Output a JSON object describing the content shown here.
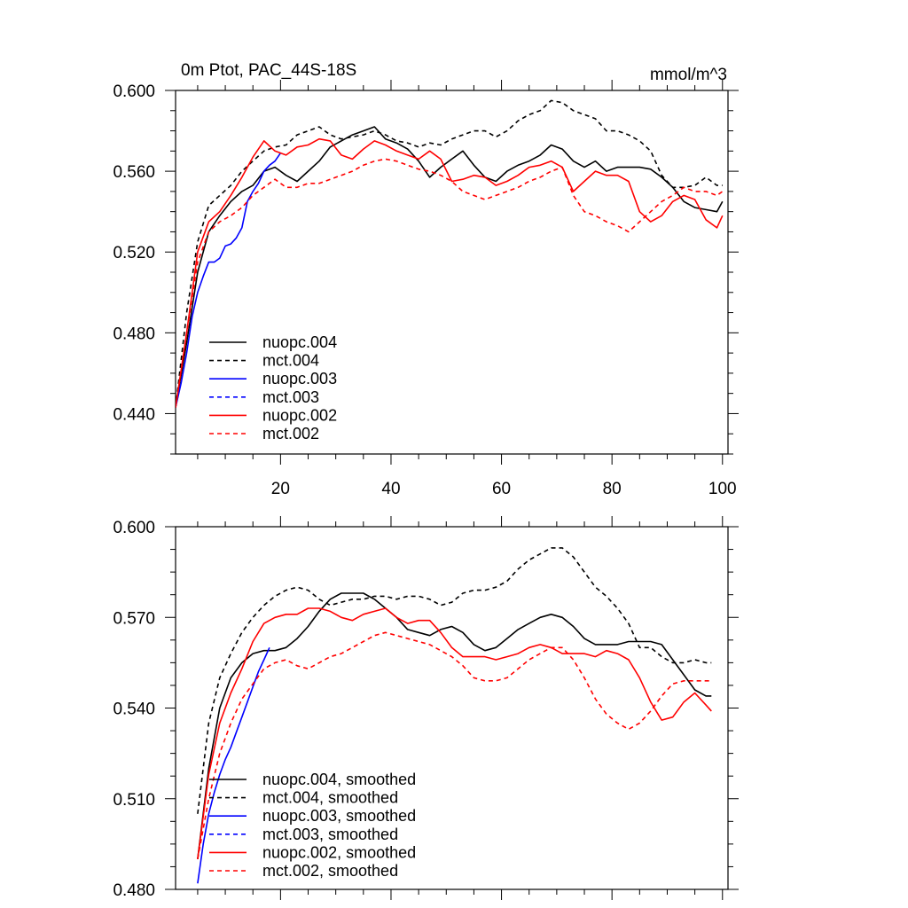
{
  "chart_data": [
    {
      "type": "line",
      "title": "0m Ptot, PAC_44S-18S",
      "units": "mmol/m^3",
      "xlim": [
        1,
        101
      ],
      "ylim": [
        0.42,
        0.6
      ],
      "xticks": [
        20,
        40,
        60,
        80,
        100
      ],
      "xtick_labels": [
        "20",
        "40",
        "60",
        "80",
        "100"
      ],
      "yticks": [
        0.44,
        0.48,
        0.52,
        0.56,
        0.6
      ],
      "ytick_labels": [
        "0.440",
        "0.480",
        "0.520",
        "0.560",
        "0.600"
      ],
      "legend_position": "lower-left",
      "series": [
        {
          "name": "nuopc.004",
          "color": "#000000",
          "dash": "solid",
          "x": [
            1,
            3,
            5,
            7,
            9,
            11,
            13,
            15,
            17,
            19,
            21,
            23,
            25,
            27,
            29,
            31,
            33,
            35,
            37,
            39,
            41,
            43,
            45,
            47,
            49,
            51,
            53,
            55,
            57,
            59,
            61,
            63,
            65,
            67,
            69,
            71,
            73,
            75,
            77,
            79,
            81,
            83,
            85,
            87,
            89,
            91,
            93,
            95,
            97,
            99,
            100
          ],
          "values": [
            0.443,
            0.475,
            0.51,
            0.53,
            0.538,
            0.545,
            0.55,
            0.553,
            0.56,
            0.562,
            0.558,
            0.555,
            0.56,
            0.565,
            0.572,
            0.575,
            0.578,
            0.58,
            0.582,
            0.576,
            0.574,
            0.571,
            0.565,
            0.557,
            0.562,
            0.566,
            0.57,
            0.563,
            0.557,
            0.555,
            0.56,
            0.563,
            0.565,
            0.568,
            0.573,
            0.571,
            0.565,
            0.562,
            0.565,
            0.56,
            0.562,
            0.562,
            0.562,
            0.561,
            0.557,
            0.552,
            0.545,
            0.542,
            0.541,
            0.54,
            0.545
          ]
        },
        {
          "name": "mct.004",
          "color": "#000000",
          "dash": "dashed",
          "x": [
            1,
            3,
            5,
            7,
            9,
            11,
            13,
            15,
            17,
            19,
            21,
            23,
            25,
            27,
            29,
            31,
            33,
            35,
            37,
            39,
            41,
            43,
            45,
            47,
            49,
            51,
            53,
            55,
            57,
            59,
            61,
            63,
            65,
            67,
            69,
            71,
            73,
            75,
            77,
            79,
            81,
            83,
            85,
            87,
            89,
            91,
            93,
            95,
            97,
            99,
            100
          ],
          "values": [
            0.443,
            0.49,
            0.525,
            0.543,
            0.548,
            0.553,
            0.56,
            0.565,
            0.57,
            0.572,
            0.573,
            0.578,
            0.58,
            0.582,
            0.578,
            0.576,
            0.577,
            0.578,
            0.58,
            0.578,
            0.575,
            0.574,
            0.572,
            0.574,
            0.573,
            0.576,
            0.578,
            0.58,
            0.58,
            0.577,
            0.58,
            0.585,
            0.588,
            0.59,
            0.595,
            0.594,
            0.59,
            0.588,
            0.586,
            0.58,
            0.58,
            0.578,
            0.575,
            0.57,
            0.558,
            0.552,
            0.552,
            0.553,
            0.557,
            0.553,
            0.553
          ]
        },
        {
          "name": "nuopc.003",
          "color": "#0000ff",
          "dash": "solid",
          "x": [
            1,
            2,
            3,
            4,
            5,
            6,
            7,
            8,
            9,
            10,
            11,
            12,
            13,
            14,
            15,
            16,
            17,
            18,
            19,
            20
          ],
          "values": [
            0.443,
            0.455,
            0.47,
            0.488,
            0.5,
            0.508,
            0.515,
            0.515,
            0.517,
            0.523,
            0.524,
            0.527,
            0.532,
            0.545,
            0.55,
            0.554,
            0.56,
            0.563,
            0.565,
            0.569
          ]
        },
        {
          "name": "mct.003",
          "color": "#0000ff",
          "dash": "dashed",
          "x": [],
          "values": []
        },
        {
          "name": "nuopc.002",
          "color": "#ff0000",
          "dash": "solid",
          "x": [
            1,
            3,
            5,
            7,
            9,
            11,
            13,
            15,
            17,
            19,
            21,
            23,
            25,
            27,
            29,
            31,
            33,
            35,
            37,
            39,
            41,
            43,
            45,
            47,
            49,
            51,
            53,
            55,
            57,
            59,
            61,
            63,
            65,
            67,
            69,
            71,
            73,
            75,
            77,
            79,
            81,
            83,
            85,
            87,
            89,
            91,
            93,
            95,
            97,
            99,
            100
          ],
          "values": [
            0.443,
            0.48,
            0.52,
            0.535,
            0.54,
            0.548,
            0.557,
            0.567,
            0.575,
            0.57,
            0.568,
            0.572,
            0.573,
            0.576,
            0.575,
            0.568,
            0.566,
            0.571,
            0.575,
            0.573,
            0.57,
            0.568,
            0.566,
            0.57,
            0.566,
            0.555,
            0.556,
            0.558,
            0.557,
            0.553,
            0.555,
            0.558,
            0.562,
            0.563,
            0.565,
            0.562,
            0.55,
            0.555,
            0.56,
            0.558,
            0.558,
            0.555,
            0.54,
            0.535,
            0.538,
            0.545,
            0.548,
            0.546,
            0.536,
            0.532,
            0.538
          ]
        },
        {
          "name": "mct.002",
          "color": "#ff0000",
          "dash": "dashed",
          "x": [
            1,
            3,
            5,
            7,
            9,
            11,
            13,
            15,
            17,
            19,
            21,
            23,
            25,
            27,
            29,
            31,
            33,
            35,
            37,
            39,
            41,
            43,
            45,
            47,
            49,
            51,
            53,
            55,
            57,
            59,
            61,
            63,
            65,
            67,
            69,
            71,
            73,
            75,
            77,
            79,
            81,
            83,
            85,
            87,
            89,
            91,
            93,
            95,
            97,
            99,
            100
          ],
          "values": [
            0.443,
            0.48,
            0.515,
            0.53,
            0.535,
            0.538,
            0.542,
            0.548,
            0.552,
            0.556,
            0.552,
            0.552,
            0.554,
            0.554,
            0.556,
            0.558,
            0.56,
            0.563,
            0.565,
            0.566,
            0.565,
            0.563,
            0.561,
            0.56,
            0.558,
            0.555,
            0.55,
            0.548,
            0.546,
            0.548,
            0.55,
            0.552,
            0.555,
            0.557,
            0.56,
            0.562,
            0.548,
            0.54,
            0.538,
            0.535,
            0.533,
            0.53,
            0.535,
            0.54,
            0.545,
            0.548,
            0.552,
            0.55,
            0.55,
            0.548,
            0.55
          ]
        }
      ]
    },
    {
      "type": "line",
      "xlim": [
        1,
        101
      ],
      "ylim": [
        0.48,
        0.6
      ],
      "xticks": [
        20,
        40,
        60,
        80,
        100
      ],
      "yticks": [
        0.48,
        0.51,
        0.54,
        0.57,
        0.6
      ],
      "ytick_labels": [
        "0.480",
        "0.510",
        "0.540",
        "0.570",
        "0.600"
      ],
      "legend_position": "lower-left",
      "series": [
        {
          "name": "nuopc.004, smoothed",
          "color": "#000000",
          "dash": "solid",
          "x": [
            5,
            7,
            9,
            11,
            13,
            15,
            17,
            19,
            21,
            23,
            25,
            27,
            29,
            31,
            33,
            35,
            37,
            39,
            41,
            43,
            45,
            47,
            49,
            51,
            53,
            55,
            57,
            59,
            61,
            63,
            65,
            67,
            69,
            71,
            73,
            75,
            77,
            79,
            81,
            83,
            85,
            87,
            89,
            91,
            93,
            95,
            97,
            98
          ],
          "values": [
            0.49,
            0.52,
            0.54,
            0.55,
            0.555,
            0.558,
            0.559,
            0.559,
            0.56,
            0.563,
            0.567,
            0.572,
            0.576,
            0.578,
            0.578,
            0.578,
            0.576,
            0.573,
            0.57,
            0.566,
            0.565,
            0.564,
            0.566,
            0.567,
            0.565,
            0.561,
            0.559,
            0.56,
            0.563,
            0.566,
            0.568,
            0.57,
            0.571,
            0.57,
            0.567,
            0.563,
            0.561,
            0.561,
            0.561,
            0.562,
            0.562,
            0.562,
            0.561,
            0.556,
            0.551,
            0.546,
            0.544,
            0.544
          ]
        },
        {
          "name": "mct.004, smoothed",
          "color": "#000000",
          "dash": "dashed",
          "x": [
            5,
            7,
            9,
            11,
            13,
            15,
            17,
            19,
            21,
            23,
            25,
            27,
            29,
            31,
            33,
            35,
            37,
            39,
            41,
            43,
            45,
            47,
            49,
            51,
            53,
            55,
            57,
            59,
            61,
            63,
            65,
            67,
            69,
            71,
            73,
            75,
            77,
            79,
            81,
            83,
            85,
            87,
            89,
            91,
            93,
            95,
            97,
            98
          ],
          "values": [
            0.505,
            0.535,
            0.55,
            0.558,
            0.565,
            0.57,
            0.574,
            0.577,
            0.579,
            0.58,
            0.579,
            0.576,
            0.574,
            0.575,
            0.576,
            0.576,
            0.577,
            0.577,
            0.576,
            0.577,
            0.577,
            0.576,
            0.574,
            0.575,
            0.578,
            0.579,
            0.579,
            0.58,
            0.582,
            0.586,
            0.589,
            0.591,
            0.593,
            0.593,
            0.59,
            0.585,
            0.58,
            0.577,
            0.573,
            0.568,
            0.56,
            0.56,
            0.557,
            0.555,
            0.555,
            0.556,
            0.555,
            0.555
          ]
        },
        {
          "name": "nuopc.003, smoothed",
          "color": "#0000ff",
          "dash": "solid",
          "x": [
            5,
            6,
            7,
            8,
            9,
            10,
            11,
            12,
            13,
            14,
            15,
            16,
            17,
            18
          ],
          "values": [
            0.482,
            0.495,
            0.505,
            0.512,
            0.518,
            0.523,
            0.527,
            0.532,
            0.537,
            0.542,
            0.547,
            0.552,
            0.556,
            0.56
          ]
        },
        {
          "name": "mct.003, smoothed",
          "color": "#0000ff",
          "dash": "dashed",
          "x": [],
          "values": []
        },
        {
          "name": "nuopc.002, smoothed",
          "color": "#ff0000",
          "dash": "solid",
          "x": [
            5,
            7,
            9,
            11,
            13,
            15,
            17,
            19,
            21,
            23,
            25,
            27,
            29,
            31,
            33,
            35,
            37,
            39,
            41,
            43,
            45,
            47,
            49,
            51,
            53,
            55,
            57,
            59,
            61,
            63,
            65,
            67,
            69,
            71,
            73,
            75,
            77,
            79,
            81,
            83,
            85,
            87,
            89,
            91,
            93,
            95,
            97,
            98
          ],
          "values": [
            0.49,
            0.518,
            0.535,
            0.545,
            0.553,
            0.562,
            0.568,
            0.57,
            0.571,
            0.571,
            0.573,
            0.573,
            0.572,
            0.57,
            0.569,
            0.571,
            0.572,
            0.573,
            0.57,
            0.568,
            0.569,
            0.569,
            0.565,
            0.56,
            0.557,
            0.557,
            0.557,
            0.556,
            0.557,
            0.558,
            0.56,
            0.561,
            0.56,
            0.558,
            0.558,
            0.558,
            0.557,
            0.559,
            0.558,
            0.556,
            0.55,
            0.542,
            0.536,
            0.537,
            0.542,
            0.545,
            0.541,
            0.539
          ]
        },
        {
          "name": "mct.002, smoothed",
          "color": "#ff0000",
          "dash": "dashed",
          "x": [
            5,
            7,
            9,
            11,
            13,
            15,
            17,
            19,
            21,
            23,
            25,
            27,
            29,
            31,
            33,
            35,
            37,
            39,
            41,
            43,
            45,
            47,
            49,
            51,
            53,
            55,
            57,
            59,
            61,
            63,
            65,
            67,
            69,
            71,
            73,
            75,
            77,
            79,
            81,
            83,
            85,
            87,
            89,
            91,
            93,
            95,
            97,
            98
          ],
          "values": [
            0.49,
            0.51,
            0.525,
            0.535,
            0.543,
            0.548,
            0.553,
            0.555,
            0.556,
            0.554,
            0.553,
            0.555,
            0.557,
            0.558,
            0.56,
            0.562,
            0.564,
            0.565,
            0.564,
            0.563,
            0.562,
            0.561,
            0.559,
            0.557,
            0.554,
            0.55,
            0.549,
            0.549,
            0.55,
            0.553,
            0.556,
            0.558,
            0.56,
            0.56,
            0.556,
            0.55,
            0.543,
            0.538,
            0.535,
            0.533,
            0.535,
            0.539,
            0.544,
            0.548,
            0.549,
            0.549,
            0.549,
            0.549
          ]
        }
      ]
    }
  ]
}
